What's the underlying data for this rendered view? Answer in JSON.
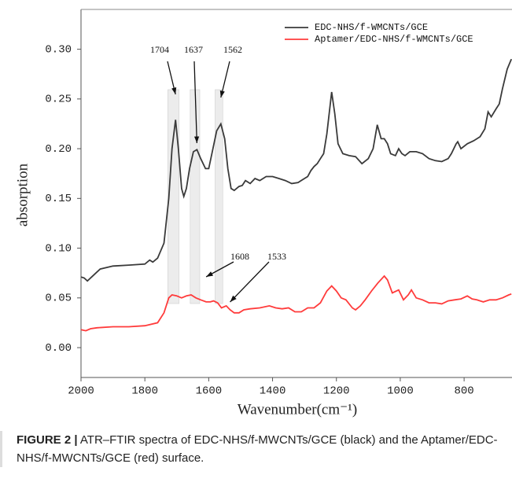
{
  "chart_data": {
    "type": "line",
    "x_label": "Wavenumber(cm⁻¹)",
    "y_label": "absorption",
    "xlim": [
      2000,
      650
    ],
    "xticks": [
      2000,
      1800,
      1600,
      1400,
      1200,
      1000,
      800
    ],
    "ylim": [
      -0.03,
      0.34
    ],
    "yticks": [
      {
        "value": 0,
        "label": "0.00"
      },
      {
        "value": 0.05,
        "label": "0.05"
      },
      {
        "value": 0.1,
        "label": "0.10"
      },
      {
        "value": 0.15,
        "label": "0.15"
      },
      {
        "value": 0.2,
        "label": "0.20"
      },
      {
        "value": 0.25,
        "label": "0.25"
      },
      {
        "value": 0.3,
        "label": "0.30"
      }
    ],
    "legend": "upper right",
    "series": [
      {
        "name": "EDC-NHS/f-WMCNTs/GCE",
        "color": "#3a3a3a",
        "x": [
          2000,
          1990,
          1980,
          1960,
          1940,
          1900,
          1850,
          1800,
          1785,
          1775,
          1760,
          1740,
          1725,
          1715,
          1704,
          1695,
          1685,
          1678,
          1670,
          1660,
          1648,
          1637,
          1625,
          1610,
          1600,
          1590,
          1575,
          1562,
          1550,
          1540,
          1530,
          1520,
          1505,
          1495,
          1485,
          1470,
          1455,
          1440,
          1420,
          1400,
          1380,
          1360,
          1340,
          1320,
          1300,
          1290,
          1280,
          1270,
          1260,
          1250,
          1240,
          1230,
          1215,
          1205,
          1195,
          1180,
          1160,
          1140,
          1120,
          1100,
          1085,
          1072,
          1060,
          1050,
          1040,
          1030,
          1015,
          1005,
          995,
          985,
          970,
          950,
          930,
          910,
          890,
          870,
          850,
          840,
          825,
          820,
          810,
          790,
          770,
          750,
          735,
          725,
          715,
          700,
          690,
          680,
          665,
          652
        ],
        "values": [
          0.071,
          0.07,
          0.067,
          0.073,
          0.079,
          0.082,
          0.083,
          0.084,
          0.088,
          0.086,
          0.09,
          0.105,
          0.15,
          0.2,
          0.229,
          0.2,
          0.16,
          0.152,
          0.16,
          0.18,
          0.197,
          0.199,
          0.19,
          0.18,
          0.18,
          0.195,
          0.218,
          0.225,
          0.21,
          0.18,
          0.16,
          0.158,
          0.162,
          0.163,
          0.168,
          0.165,
          0.17,
          0.168,
          0.172,
          0.172,
          0.17,
          0.168,
          0.165,
          0.166,
          0.17,
          0.172,
          0.178,
          0.182,
          0.185,
          0.19,
          0.195,
          0.215,
          0.257,
          0.235,
          0.205,
          0.195,
          0.193,
          0.192,
          0.185,
          0.19,
          0.2,
          0.224,
          0.21,
          0.21,
          0.205,
          0.195,
          0.193,
          0.2,
          0.195,
          0.193,
          0.197,
          0.197,
          0.195,
          0.19,
          0.188,
          0.187,
          0.19,
          0.195,
          0.205,
          0.207,
          0.2,
          0.205,
          0.208,
          0.212,
          0.22,
          0.237,
          0.232,
          0.24,
          0.245,
          0.26,
          0.28,
          0.29
        ]
      },
      {
        "name": "Aptamer/EDC-NHS/f-WMCNTs/GCE",
        "color": "#ff3b3b",
        "x": [
          2000,
          1985,
          1970,
          1950,
          1900,
          1850,
          1800,
          1760,
          1740,
          1725,
          1715,
          1700,
          1685,
          1670,
          1655,
          1640,
          1625,
          1608,
          1595,
          1585,
          1572,
          1560,
          1545,
          1533,
          1520,
          1505,
          1490,
          1470,
          1440,
          1410,
          1390,
          1370,
          1350,
          1330,
          1310,
          1290,
          1270,
          1250,
          1230,
          1215,
          1200,
          1185,
          1170,
          1150,
          1140,
          1125,
          1110,
          1090,
          1070,
          1050,
          1040,
          1025,
          1005,
          990,
          975,
          965,
          950,
          930,
          910,
          890,
          870,
          850,
          830,
          810,
          790,
          775,
          760,
          740,
          720,
          700,
          680,
          660,
          652
        ],
        "values": [
          0.018,
          0.017,
          0.019,
          0.02,
          0.021,
          0.021,
          0.022,
          0.025,
          0.035,
          0.05,
          0.053,
          0.052,
          0.05,
          0.052,
          0.053,
          0.05,
          0.048,
          0.046,
          0.046,
          0.047,
          0.045,
          0.04,
          0.042,
          0.038,
          0.035,
          0.035,
          0.038,
          0.039,
          0.04,
          0.042,
          0.04,
          0.039,
          0.04,
          0.036,
          0.036,
          0.04,
          0.04,
          0.045,
          0.057,
          0.062,
          0.057,
          0.05,
          0.048,
          0.04,
          0.038,
          0.042,
          0.048,
          0.057,
          0.065,
          0.072,
          0.068,
          0.055,
          0.058,
          0.048,
          0.053,
          0.058,
          0.05,
          0.048,
          0.045,
          0.045,
          0.044,
          0.047,
          0.048,
          0.049,
          0.052,
          0.049,
          0.048,
          0.046,
          0.048,
          0.048,
          0.05,
          0.053,
          0.054
        ]
      }
    ],
    "highlight_ranges": [
      [
        1728,
        1693
      ],
      [
        1658,
        1628
      ],
      [
        1580,
        1556
      ]
    ],
    "annotations": [
      {
        "text": "1704",
        "x": 1704
      },
      {
        "text": "1637",
        "x": 1637
      },
      {
        "text": "1562",
        "x": 1562
      },
      {
        "text": "1608",
        "x": 1608
      },
      {
        "text": "1533",
        "x": 1533
      }
    ]
  },
  "caption": {
    "label": "FIGURE 2 |",
    "text": "ATR–FTIR spectra of EDC-NHS/f-MWCNTs/GCE (black) and the Aptamer/EDC-NHS/f-MWCNTs/GCE (red) surface."
  }
}
